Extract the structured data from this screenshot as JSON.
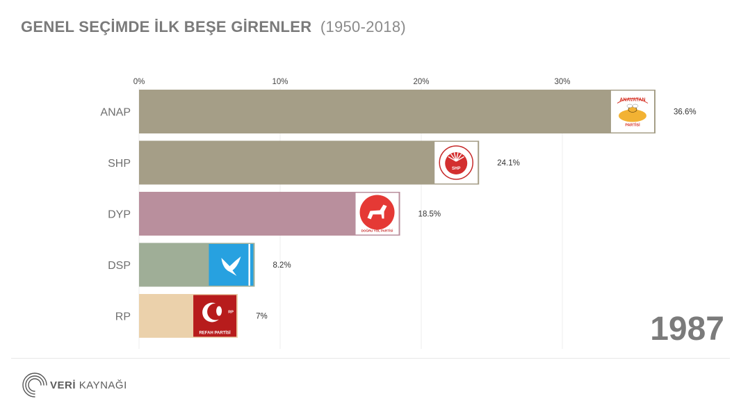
{
  "header": {
    "title": "GENEL SEÇİMDE İLK BEŞE GİRENLER",
    "subtitle": "(1950-2018)"
  },
  "year": "1987",
  "brand": {
    "name_bold": "VERİ",
    "name_rest": "KAYNAĞI"
  },
  "chart_data": {
    "type": "bar",
    "orientation": "horizontal",
    "title": "GENEL SEÇİMDE İLK BEŞE GİRENLER",
    "x_ticks": [
      "0%",
      "10%",
      "20%",
      "30%"
    ],
    "xlim": [
      0,
      40
    ],
    "grid": true,
    "categories": [
      "ANAP",
      "SHP",
      "DYP",
      "DSP",
      "RP"
    ],
    "values": [
      36.6,
      24.1,
      18.5,
      8.2,
      7
    ],
    "value_labels": [
      "36.6%",
      "24.1%",
      "18.5%",
      "8.2%",
      "7%"
    ],
    "colors": [
      "#a59e87",
      "#a59e87",
      "#b98f9d",
      "#9fae97",
      "#ebd1ab"
    ],
    "logos": [
      {
        "icon": "anavatan-bee-logo",
        "text_top": "ANAVATAN",
        "text_bottom": "PARTİSİ"
      },
      {
        "icon": "shp-logo",
        "text": "SHP"
      },
      {
        "icon": "dyp-horse-logo",
        "text": "DOĞRU YOL PARTİSİ"
      },
      {
        "icon": "dsp-dove-logo"
      },
      {
        "icon": "rp-refah-logo",
        "text": "REFAH PARTİSİ",
        "badge": "RP"
      }
    ]
  }
}
